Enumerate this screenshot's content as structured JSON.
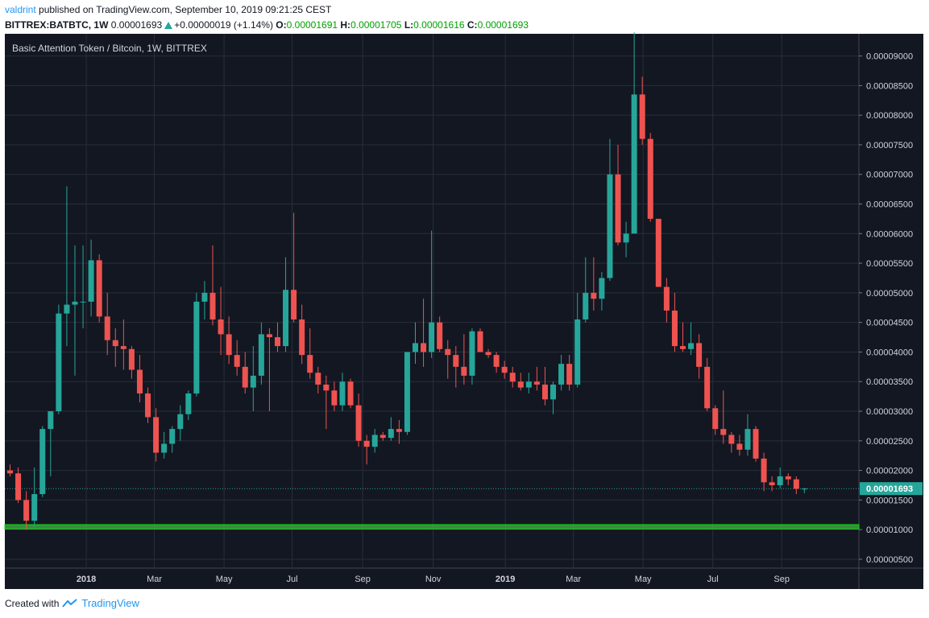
{
  "header": {
    "user": "valdrint",
    "published": "published on TradingView.com, September 10, 2019 09:21:25 CEST",
    "symbol": "BITTREX:BATBTC, 1W",
    "last": "0.00001693",
    "change": "+0.00000019 (+1.14%)",
    "o_label": "O:",
    "o_value": "0.00001691",
    "h_label": "H:",
    "h_value": "0.00001705",
    "l_label": "L:",
    "l_value": "0.00001616",
    "c_label": "C:",
    "c_value": "0.00001693"
  },
  "footer": {
    "created_with": "Created with",
    "brand": "TradingView"
  },
  "colors": {
    "background": "#131722",
    "up": "#26a69a",
    "down": "#ef5350",
    "support_band": "#4caf50",
    "grid": "#2a2e39",
    "axis_text": "#d1d4dc"
  },
  "chart_data": {
    "type": "candlestick",
    "title": "Basic Attention Token / Bitcoin, 1W, BITTREX",
    "timeframe": "1W",
    "x_ticks": [
      "2018",
      "Mar",
      "May",
      "Jul",
      "Sep",
      "Nov",
      "2019",
      "Mar",
      "May",
      "Jul",
      "Sep"
    ],
    "y_ticks": [
      "0.00000500",
      "0.00001000",
      "0.00001500",
      "0.00002000",
      "0.00002500",
      "0.00003000",
      "0.00003500",
      "0.00004000",
      "0.00004500",
      "0.00005000",
      "0.00005500",
      "0.00006000",
      "0.00006500",
      "0.00007000",
      "0.00007500",
      "0.00008000",
      "0.00008500",
      "0.00009000"
    ],
    "ylim": [
      3.5e-06,
      9.375e-05
    ],
    "last_price": 1.693e-05,
    "last_price_label": "0.00001693",
    "support_band": [
      1.01e-05,
      1.085e-05
    ],
    "candles_ohlc": [
      [
        2e-05,
        2.1e-05,
        1.9e-05,
        1.95e-05
      ],
      [
        1.95e-05,
        2.05e-05,
        1.45e-05,
        1.5e-05
      ],
      [
        1.5e-05,
        1.65e-05,
        1e-05,
        1.15e-05
      ],
      [
        1.15e-05,
        2.05e-05,
        1.05e-05,
        1.6e-05
      ],
      [
        1.6e-05,
        2.75e-05,
        1.55e-05,
        2.7e-05
      ],
      [
        2.7e-05,
        3e-05,
        1.9e-05,
        3e-05
      ],
      [
        3e-05,
        4.8e-05,
        2.95e-05,
        4.65e-05
      ],
      [
        4.65e-05,
        6.8e-05,
        4.1e-05,
        4.8e-05
      ],
      [
        4.8e-05,
        5.8e-05,
        3.6e-05,
        4.85e-05
      ],
      [
        4.85e-05,
        5.8e-05,
        4.4e-05,
        4.85e-05
      ],
      [
        4.85e-05,
        5.9e-05,
        4.6e-05,
        5.55e-05
      ],
      [
        5.55e-05,
        5.65e-05,
        4.5e-05,
        4.6e-05
      ],
      [
        4.6e-05,
        5e-05,
        3.95e-05,
        4.2e-05
      ],
      [
        4.2e-05,
        4.4e-05,
        3.75e-05,
        4.1e-05
      ],
      [
        4.1e-05,
        4.55e-05,
        3.7e-05,
        4.05e-05
      ],
      [
        4.05e-05,
        4.1e-05,
        3.55e-05,
        3.7e-05
      ],
      [
        3.7e-05,
        3.95e-05,
        3.15e-05,
        3.3e-05
      ],
      [
        3.3e-05,
        3.4e-05,
        2.8e-05,
        2.9e-05
      ],
      [
        2.9e-05,
        3.05e-05,
        2.15e-05,
        2.3e-05
      ],
      [
        2.3e-05,
        2.65e-05,
        2.2e-05,
        2.45e-05
      ],
      [
        2.45e-05,
        2.75e-05,
        2.3e-05,
        2.7e-05
      ],
      [
        2.7e-05,
        3.1e-05,
        2.5e-05,
        2.95e-05
      ],
      [
        2.95e-05,
        3.35e-05,
        2.85e-05,
        3.3e-05
      ],
      [
        3.3e-05,
        5e-05,
        3.25e-05,
        4.85e-05
      ],
      [
        4.85e-05,
        5.2e-05,
        4.55e-05,
        5e-05
      ],
      [
        5e-05,
        5.8e-05,
        4.45e-05,
        4.55e-05
      ],
      [
        4.55e-05,
        5.1e-05,
        3.95e-05,
        4.3e-05
      ],
      [
        4.3e-05,
        4.6e-05,
        3.8e-05,
        3.95e-05
      ],
      [
        3.95e-05,
        4.2e-05,
        3.6e-05,
        3.75e-05
      ],
      [
        3.75e-05,
        4e-05,
        3.3e-05,
        3.4e-05
      ],
      [
        3.4e-05,
        4.1e-05,
        3e-05,
        3.6e-05
      ],
      [
        3.6e-05,
        4.5e-05,
        3.45e-05,
        4.3e-05
      ],
      [
        4.3e-05,
        4.4e-05,
        3e-05,
        4.25e-05
      ],
      [
        4.25e-05,
        4.5e-05,
        4e-05,
        4.1e-05
      ],
      [
        4.1e-05,
        5.6e-05,
        4e-05,
        5.05e-05
      ],
      [
        5.05e-05,
        6.35e-05,
        4.5e-05,
        4.55e-05
      ],
      [
        4.55e-05,
        4.8e-05,
        3.8e-05,
        3.95e-05
      ],
      [
        3.95e-05,
        4.4e-05,
        3.55e-05,
        3.65e-05
      ],
      [
        3.65e-05,
        3.75e-05,
        3.3e-05,
        3.45e-05
      ],
      [
        3.45e-05,
        3.6e-05,
        2.7e-05,
        3.35e-05
      ],
      [
        3.35e-05,
        3.5e-05,
        3e-05,
        3.1e-05
      ],
      [
        3.1e-05,
        3.65e-05,
        3e-05,
        3.5e-05
      ],
      [
        3.5e-05,
        3.55e-05,
        3.05e-05,
        3.1e-05
      ],
      [
        3.1e-05,
        3.3e-05,
        2.4e-05,
        2.5e-05
      ],
      [
        2.5e-05,
        2.6e-05,
        2.1e-05,
        2.4e-05
      ],
      [
        2.4e-05,
        2.7e-05,
        2.3e-05,
        2.6e-05
      ],
      [
        2.6e-05,
        2.65e-05,
        2.5e-05,
        2.55e-05
      ],
      [
        2.55e-05,
        2.9e-05,
        2.5e-05,
        2.7e-05
      ],
      [
        2.7e-05,
        2.85e-05,
        2.45e-05,
        2.65e-05
      ],
      [
        2.65e-05,
        4e-05,
        2.6e-05,
        4e-05
      ],
      [
        4e-05,
        4.5e-05,
        3.8e-05,
        4.15e-05
      ],
      [
        4.15e-05,
        4.9e-05,
        3.75e-05,
        4e-05
      ],
      [
        4e-05,
        6.05e-05,
        3.9e-05,
        4.5e-05
      ],
      [
        4.5e-05,
        4.6e-05,
        4e-05,
        4.05e-05
      ],
      [
        4.05e-05,
        4.2e-05,
        3.55e-05,
        3.95e-05
      ],
      [
        3.95e-05,
        4.1e-05,
        3.4e-05,
        3.75e-05
      ],
      [
        3.75e-05,
        4.3e-05,
        3.45e-05,
        3.6e-05
      ],
      [
        3.6e-05,
        4.4e-05,
        3.45e-05,
        4.35e-05
      ],
      [
        4.35e-05,
        4.4e-05,
        4e-05,
        4e-05
      ],
      [
        4e-05,
        4.05e-05,
        3.9e-05,
        3.95e-05
      ],
      [
        3.95e-05,
        4e-05,
        3.65e-05,
        3.75e-05
      ],
      [
        3.75e-05,
        3.85e-05,
        3.55e-05,
        3.65e-05
      ],
      [
        3.65e-05,
        3.75e-05,
        3.4e-05,
        3.5e-05
      ],
      [
        3.5e-05,
        3.65e-05,
        3.35e-05,
        3.4e-05
      ],
      [
        3.4e-05,
        3.65e-05,
        3.3e-05,
        3.5e-05
      ],
      [
        3.5e-05,
        3.75e-05,
        3.35e-05,
        3.45e-05
      ],
      [
        3.45e-05,
        3.75e-05,
        3.1e-05,
        3.2e-05
      ],
      [
        3.2e-05,
        3.5e-05,
        2.95e-05,
        3.45e-05
      ],
      [
        3.45e-05,
        3.95e-05,
        3.35e-05,
        3.8e-05
      ],
      [
        3.8e-05,
        3.95e-05,
        3.35e-05,
        3.45e-05
      ],
      [
        3.45e-05,
        5e-05,
        3.4e-05,
        4.55e-05
      ],
      [
        4.55e-05,
        5.6e-05,
        4.5e-05,
        5e-05
      ],
      [
        5e-05,
        5.6e-05,
        4.7e-05,
        4.9e-05
      ],
      [
        4.9e-05,
        5.35e-05,
        4.7e-05,
        5.25e-05
      ],
      [
        5.25e-05,
        7.6e-05,
        5.2e-05,
        7e-05
      ],
      [
        7e-05,
        7.5e-05,
        5.8e-05,
        5.85e-05
      ],
      [
        5.85e-05,
        6.2e-05,
        5.6e-05,
        6e-05
      ],
      [
        6e-05,
        9.4e-05,
        6e-05,
        8.35e-05
      ],
      [
        8.35e-05,
        8.65e-05,
        7.5e-05,
        7.6e-05
      ],
      [
        7.6e-05,
        7.7e-05,
        6.2e-05,
        6.25e-05
      ],
      [
        6.25e-05,
        6.25e-05,
        5.1e-05,
        5.1e-05
      ],
      [
        5.1e-05,
        5.25e-05,
        4.5e-05,
        4.7e-05
      ],
      [
        4.7e-05,
        5e-05,
        4e-05,
        4.1e-05
      ],
      [
        4.1e-05,
        4.5e-05,
        4e-05,
        4.05e-05
      ],
      [
        4.05e-05,
        4.5e-05,
        3.95e-05,
        4.15e-05
      ],
      [
        4.15e-05,
        4.3e-05,
        3.55e-05,
        3.75e-05
      ],
      [
        3.75e-05,
        3.9e-05,
        3e-05,
        3.05e-05
      ],
      [
        3.05e-05,
        3.1e-05,
        2.6e-05,
        2.7e-05
      ],
      [
        2.7e-05,
        3.35e-05,
        2.45e-05,
        2.6e-05
      ],
      [
        2.6e-05,
        2.65e-05,
        2.3e-05,
        2.45e-05
      ],
      [
        2.45e-05,
        2.6e-05,
        2.25e-05,
        2.35e-05
      ],
      [
        2.35e-05,
        2.95e-05,
        2.25e-05,
        2.7e-05
      ],
      [
        2.7e-05,
        2.75e-05,
        2.15e-05,
        2.2e-05
      ],
      [
        2.2e-05,
        2.3e-05,
        1.65e-05,
        1.8e-05
      ],
      [
        1.8e-05,
        1.9e-05,
        1.65e-05,
        1.75e-05
      ],
      [
        1.75e-05,
        2.05e-05,
        1.7e-05,
        1.9e-05
      ],
      [
        1.9e-05,
        1.95e-05,
        1.75e-05,
        1.85e-05
      ],
      [
        1.85e-05,
        1.9e-05,
        1.6e-05,
        1.69e-05
      ],
      [
        1.691e-05,
        1.705e-05,
        1.616e-05,
        1.693e-05
      ]
    ]
  }
}
